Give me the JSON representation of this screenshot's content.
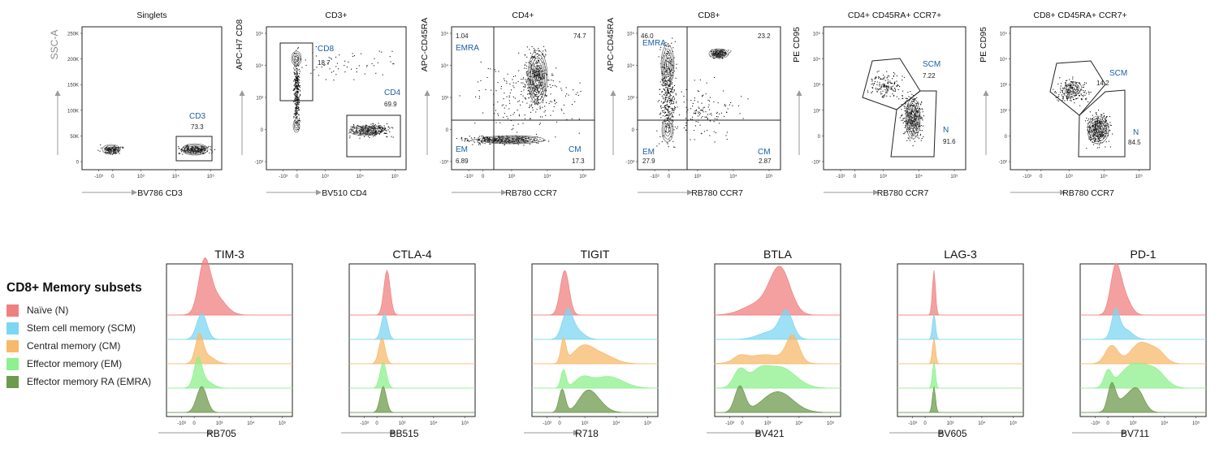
{
  "figure": {
    "legend_title": "CD8+ Memory subsets",
    "arrow_color": "#9a9a9a",
    "gate_label_color": "#1a5fa8"
  },
  "chart_data": [
    {
      "type": "scatter",
      "id": "singlets",
      "title": "Singlets",
      "xlabel": "BV786 CD3",
      "ylabel": "SSC-A",
      "y_ticks": [
        "250K",
        "200K",
        "150K",
        "100K",
        "50K",
        "0"
      ],
      "x_ticks": [
        "-10³",
        "0",
        "10³",
        "10⁴",
        "10⁵"
      ],
      "gates": [
        {
          "name": "CD3",
          "percent": "73.3"
        }
      ]
    },
    {
      "type": "scatter",
      "id": "cd3",
      "title": "CD3+",
      "xlabel": "BV510 CD4",
      "ylabel": "APC-H7 CD8",
      "y_ticks": [
        "10⁵",
        "10⁴",
        "10³",
        "0",
        "-10³"
      ],
      "x_ticks": [
        "-10³",
        "0",
        "10³",
        "10⁴",
        "10⁵"
      ],
      "gates": [
        {
          "name": "CD8",
          "percent": "18.7"
        },
        {
          "name": "CD4",
          "percent": "69.9"
        }
      ]
    },
    {
      "type": "scatter",
      "id": "cd4",
      "title": "CD4+",
      "xlabel": "RB780 CCR7",
      "ylabel": "APC-CD45RA",
      "y_ticks": [
        "10⁵",
        "10⁴",
        "10³",
        "0",
        "-10³"
      ],
      "x_ticks": [
        "-10³",
        "0",
        "10³",
        "10⁴",
        "10⁵"
      ],
      "gates": [
        {
          "name": "EMRA",
          "percent": "1.04"
        },
        {
          "name": "",
          "percent": "74.7"
        },
        {
          "name": "EM",
          "percent": "6.89"
        },
        {
          "name": "CM",
          "percent": "17.3"
        }
      ]
    },
    {
      "type": "scatter",
      "id": "cd8",
      "title": "CD8+",
      "xlabel": "RB780 CCR7",
      "ylabel": "APC-CD45RA",
      "y_ticks": [
        "10⁵",
        "10⁴",
        "10³",
        "0",
        "-10³"
      ],
      "x_ticks": [
        "-10³",
        "0",
        "10³",
        "10⁴",
        "10⁵"
      ],
      "gates": [
        {
          "name": "EMRA",
          "percent": "46.0"
        },
        {
          "name": "",
          "percent": "23.2"
        },
        {
          "name": "EM",
          "percent": "27.9"
        },
        {
          "name": "CM",
          "percent": "2.87"
        }
      ]
    },
    {
      "type": "scatter",
      "id": "cd4naive",
      "title": "CD4+ CD45RA+ CCR7+",
      "xlabel": "RB780 CCR7",
      "ylabel": "PE CD95",
      "y_ticks": [
        "10⁵",
        "10⁴",
        "10³",
        "10²",
        "0",
        "-10²"
      ],
      "x_ticks": [
        "-10³",
        "0",
        "10³",
        "10⁴",
        "10⁵"
      ],
      "gates": [
        {
          "name": "SCM",
          "percent": "7.22"
        },
        {
          "name": "N",
          "percent": "91.6"
        }
      ]
    },
    {
      "type": "scatter",
      "id": "cd8naive",
      "title": "CD8+ CD45RA+ CCR7+",
      "xlabel": "RB780 CCR7",
      "ylabel": "PE CD95",
      "y_ticks": [
        "10⁵",
        "10⁴",
        "10³",
        "10²",
        "0",
        "-10²"
      ],
      "x_ticks": [
        "-10³",
        "0",
        "10³",
        "10⁴",
        "10⁵"
      ],
      "gates": [
        {
          "name": "SCM",
          "percent": "14.2"
        },
        {
          "name": "N",
          "percent": "84.5"
        }
      ]
    },
    {
      "type": "histogram",
      "subplots": [
        {
          "title": "TIM-3",
          "xlabel": "RB705",
          "peaks": [
            0.25,
            0.3,
            0.26,
            0.25,
            0.28
          ]
        },
        {
          "title": "CTLA-4",
          "xlabel": "BB515",
          "peaks": [
            0.3,
            0.28,
            0.26,
            0.27,
            0.27
          ]
        },
        {
          "title": "TIGIT",
          "xlabel": "R718",
          "peaks": [
            0.26,
            0.28,
            0.42,
            0.55,
            0.47
          ]
        },
        {
          "title": "BTLA",
          "xlabel": "BV421",
          "peaks": [
            0.52,
            0.57,
            0.62,
            0.52,
            0.5
          ]
        },
        {
          "title": "LAG-3",
          "xlabel": "BV605",
          "peaks": [
            0.29,
            0.29,
            0.29,
            0.29,
            0.29
          ]
        },
        {
          "title": "PD-1",
          "xlabel": "BV711",
          "peaks": [
            0.28,
            0.28,
            0.48,
            0.55,
            0.38
          ]
        }
      ],
      "x_ticks": [
        "-10³",
        "0",
        "10³",
        "10⁴",
        "10⁵"
      ],
      "series": [
        {
          "name": "Naïve (N)",
          "color": "#f08080"
        },
        {
          "name": "Stem cell memory (SCM)",
          "color": "#7dd6f2"
        },
        {
          "name": "Central memory (CM)",
          "color": "#f7b96b"
        },
        {
          "name": "Effector memory (EM)",
          "color": "#8ef08e"
        },
        {
          "name": "Effector memory RA (EMRA)",
          "color": "#6d9a4e"
        }
      ]
    }
  ]
}
